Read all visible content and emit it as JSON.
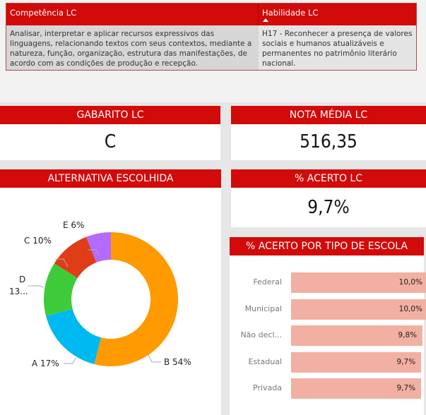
{
  "table": {
    "columns": [
      {
        "label": "Competência LC"
      },
      {
        "label": "Habilidade LC",
        "sorted": "ascending"
      }
    ],
    "rows": [
      {
        "competencia": "Analisar, interpretar e aplicar recursos expressivos das linguagens, relacionando textos com seus contextos, mediante a natureza, função, organização, estrutura das manifestações, de acordo com as condições de produção e recepção.",
        "habilidade": "H17 - Reconhecer a presença de valores sociais e humanos atualizáveis e permanentes no patrimônio literário nacional."
      }
    ]
  },
  "cards": {
    "gabarito": {
      "title": "GABARITO LC",
      "value": "C"
    },
    "nota_media": {
      "title": "NOTA MÉDIA LC",
      "value": "516,35"
    },
    "alternativa": {
      "title": "ALTERNATIVA ESCOLHIDA"
    },
    "acerto": {
      "title": "% ACERTO LC",
      "value": "9,7%"
    },
    "acerto_tipo": {
      "title": "% ACERTO POR TIPO DE ESCOLA"
    }
  },
  "colors": {
    "header_red": "#d20a0a",
    "bar": "#f2b0a2",
    "B": "#ff9a00",
    "A": "#00b8f0",
    "D": "#3ecb3a",
    "C": "#e03c18",
    "E": "#b36bff"
  },
  "chart_data": [
    {
      "type": "pie",
      "title": "ALTERNATIVA ESCOLHIDA",
      "donut": true,
      "categories": [
        "B",
        "A",
        "D",
        "C",
        "E"
      ],
      "values": [
        54,
        17,
        13,
        10,
        6
      ],
      "labels": [
        "B 54%",
        "A 17%",
        "D 13...",
        "C 10%",
        "E 6%"
      ],
      "colors": [
        "#ff9a00",
        "#00b8f0",
        "#3ecb3a",
        "#e03c18",
        "#b36bff"
      ]
    },
    {
      "type": "bar",
      "orientation": "horizontal",
      "title": "% ACERTO POR TIPO DE ESCOLA",
      "categories": [
        "Federal",
        "Municipal",
        "Não decl...",
        "Estadual",
        "Privada"
      ],
      "values": [
        10.0,
        10.0,
        9.8,
        9.7,
        9.7
      ],
      "value_labels": [
        "10,0%",
        "10,0%",
        "9,8%",
        "9,7%",
        "9,7%"
      ]
    }
  ],
  "donut_labels": {
    "e": "E 6%",
    "c": "C 10%",
    "d_line1": "D",
    "d_line2": "13...",
    "a": "A 17%",
    "b": "B 54%"
  }
}
